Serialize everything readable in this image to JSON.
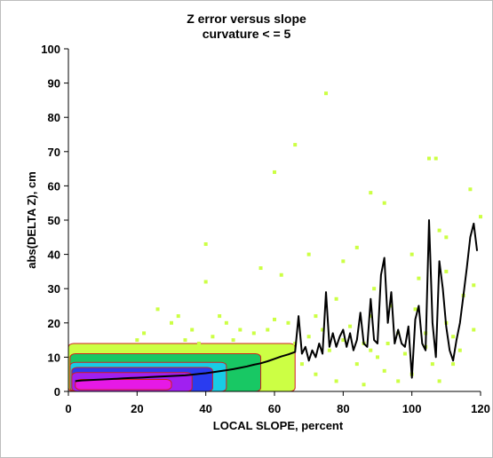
{
  "chart_data": {
    "type": "heatmap",
    "title": "Z error versus slope",
    "subtitle": "curvature < = 5",
    "xlabel": "LOCAL SLOPE, percent",
    "ylabel": "abs(DELTA Z), cm",
    "xlim": [
      0,
      120
    ],
    "ylim": [
      0,
      100
    ],
    "xticks": [
      0,
      20,
      40,
      60,
      80,
      100,
      120
    ],
    "yticks": [
      0,
      10,
      20,
      30,
      40,
      50,
      60,
      70,
      80,
      90,
      100
    ],
    "grid": false,
    "legend": "none",
    "colors": {
      "magenta": "#e619e6",
      "purple": "#a020f0",
      "blue": "#2a3cf0",
      "cyan": "#18cce6",
      "green": "#18c864",
      "yellow": "#ccff44",
      "red": "#e02020",
      "line": "#000000"
    },
    "density_bands": [
      {
        "color": "magenta",
        "x_range": [
          2,
          30
        ],
        "y_range": [
          0.5,
          3.5
        ]
      },
      {
        "color": "purple",
        "x_range": [
          1,
          36
        ],
        "y_range": [
          0,
          5.5
        ]
      },
      {
        "color": "blue",
        "x_range": [
          1,
          42
        ],
        "y_range": [
          0,
          7
        ]
      },
      {
        "color": "cyan",
        "x_range": [
          0.5,
          46
        ],
        "y_range": [
          0,
          8.5
        ]
      },
      {
        "color": "green",
        "x_range": [
          0.5,
          56
        ],
        "y_range": [
          0,
          11
        ]
      },
      {
        "color": "yellow",
        "x_range": [
          0,
          66
        ],
        "y_range": [
          0,
          14
        ]
      }
    ],
    "scatter_points": [
      [
        75,
        87
      ],
      [
        66,
        72
      ],
      [
        60,
        64
      ],
      [
        105,
        68
      ],
      [
        107,
        68
      ],
      [
        88,
        58
      ],
      [
        92,
        55
      ],
      [
        117,
        59
      ],
      [
        120,
        51
      ],
      [
        108,
        47
      ],
      [
        40,
        43
      ],
      [
        84,
        42
      ],
      [
        110,
        45
      ],
      [
        56,
        36
      ],
      [
        40,
        32
      ],
      [
        100,
        40
      ],
      [
        70,
        40
      ],
      [
        80,
        38
      ],
      [
        62,
        34
      ],
      [
        110,
        35
      ],
      [
        102,
        33
      ],
      [
        89,
        30
      ],
      [
        118,
        31
      ],
      [
        115,
        28
      ],
      [
        78,
        27
      ],
      [
        94,
        25
      ],
      [
        88,
        22
      ],
      [
        101,
        24
      ],
      [
        60,
        21
      ],
      [
        72,
        22
      ],
      [
        64,
        20
      ],
      [
        82,
        19
      ],
      [
        104,
        17
      ],
      [
        112,
        16
      ],
      [
        96,
        17
      ],
      [
        86,
        14
      ],
      [
        70,
        16
      ],
      [
        54,
        17
      ],
      [
        50,
        18
      ],
      [
        46,
        20
      ],
      [
        42,
        16
      ],
      [
        36,
        18
      ],
      [
        32,
        22
      ],
      [
        30,
        20
      ],
      [
        26,
        24
      ],
      [
        22,
        17
      ],
      [
        20,
        15
      ],
      [
        90,
        10
      ],
      [
        98,
        11
      ],
      [
        106,
        8
      ],
      [
        114,
        12
      ],
      [
        76,
        12
      ],
      [
        84,
        8
      ],
      [
        92,
        6
      ],
      [
        68,
        8
      ],
      [
        58,
        18
      ],
      [
        48,
        15
      ],
      [
        44,
        22
      ],
      [
        38,
        14
      ],
      [
        34,
        15
      ],
      [
        100,
        5
      ],
      [
        108,
        3
      ],
      [
        96,
        3
      ],
      [
        78,
        3
      ],
      [
        86,
        2
      ],
      [
        72,
        5
      ],
      [
        64,
        3
      ],
      [
        110,
        20
      ],
      [
        118,
        18
      ],
      [
        74,
        18
      ],
      [
        66,
        14
      ],
      [
        62,
        12
      ],
      [
        80,
        15
      ],
      [
        88,
        12
      ],
      [
        104,
        13
      ],
      [
        112,
        8
      ],
      [
        93,
        14
      ]
    ],
    "series": [
      {
        "x": [
          2,
          4,
          6,
          8,
          10,
          12,
          14,
          16,
          18,
          20,
          22,
          24,
          26,
          28,
          30,
          32,
          34,
          36,
          38,
          40,
          42,
          44,
          46,
          48,
          50,
          52,
          54,
          56,
          58,
          60,
          62,
          64,
          66,
          67,
          68,
          69,
          70,
          71,
          72,
          73,
          74,
          75,
          76,
          77,
          78,
          79,
          80,
          81,
          82,
          83,
          84,
          85,
          86,
          87,
          88,
          89,
          90,
          91,
          92,
          93,
          94,
          95,
          96,
          97,
          98,
          99,
          100,
          101,
          102,
          103,
          104,
          105,
          106,
          107,
          108,
          109,
          110,
          111,
          112,
          113,
          114,
          115,
          116,
          117,
          118,
          119
        ],
        "values": [
          3,
          3.2,
          3.3,
          3.4,
          3.5,
          3.6,
          3.7,
          3.8,
          3.9,
          4,
          4.1,
          4.2,
          4.3,
          4.4,
          4.5,
          4.6,
          4.7,
          4.9,
          5.1,
          5.3,
          5.6,
          5.9,
          6.2,
          6.5,
          6.9,
          7.3,
          7.8,
          8.2,
          8.8,
          9.5,
          10.2,
          10.8,
          11.5,
          22,
          11,
          13,
          9,
          12,
          10,
          14,
          11,
          29,
          13,
          17,
          13,
          16,
          18,
          13,
          17,
          12,
          15,
          23,
          14,
          13,
          27,
          15,
          14,
          34,
          39,
          20,
          29,
          14,
          18,
          14,
          13,
          19,
          4,
          21,
          25,
          14,
          12,
          50,
          20,
          10,
          38,
          30,
          19,
          12,
          9,
          15,
          20,
          28,
          36,
          45,
          49,
          41
        ]
      }
    ]
  }
}
